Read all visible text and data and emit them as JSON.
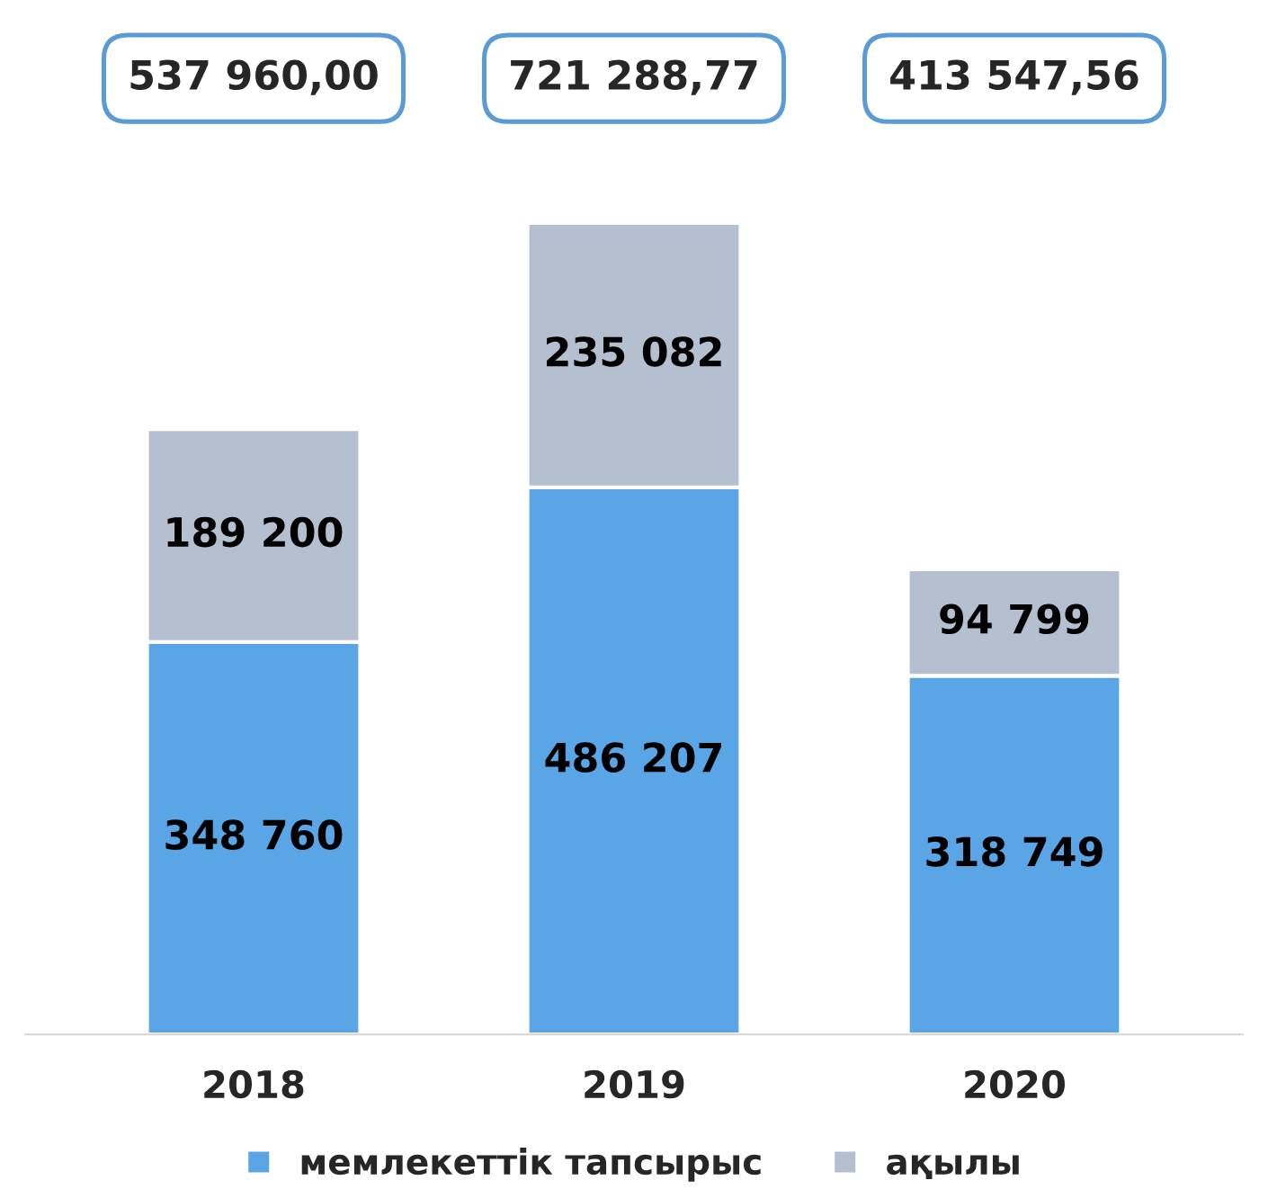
{
  "chart_data": {
    "type": "bar",
    "stacked": true,
    "categories": [
      "2018",
      "2019",
      "2020"
    ],
    "series": [
      {
        "name": "мемлекеттік тапсырыс",
        "color": "#5aa5e6",
        "values": [
          348760,
          486207,
          318749
        ],
        "value_labels": [
          "348 760",
          "486 207",
          "318 749"
        ]
      },
      {
        "name": "ақылы",
        "color": "#b4bfcf",
        "values": [
          189200,
          235082,
          94799
        ],
        "value_labels": [
          "189 200",
          "235 082",
          "94 799"
        ]
      }
    ],
    "annotations": [
      "537 960,00",
      "721 288,77",
      "413 547,56"
    ],
    "legend": "bottom",
    "grid": false
  }
}
